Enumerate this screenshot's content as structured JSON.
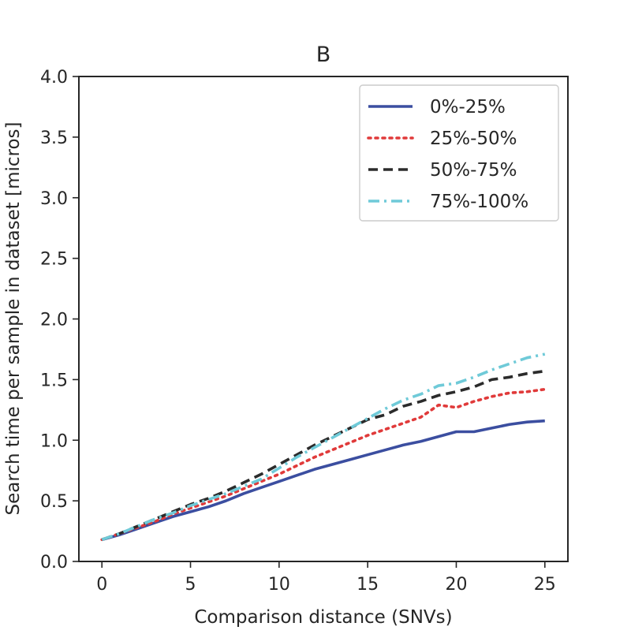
{
  "chart_data": {
    "type": "line",
    "title": "B",
    "xlabel": "Comparison distance (SNVs)",
    "ylabel": "Search time per sample in dataset [micros]",
    "xlim": [
      -1.3,
      26.3
    ],
    "ylim": [
      0.0,
      4.0
    ],
    "xticks": [
      0,
      5,
      10,
      15,
      20,
      25
    ],
    "yticks": [
      0.0,
      0.5,
      1.0,
      1.5,
      2.0,
      2.5,
      3.0,
      3.5,
      4.0
    ],
    "xtick_labels": [
      "0",
      "5",
      "10",
      "15",
      "20",
      "25"
    ],
    "ytick_labels": [
      "0.0",
      "0.5",
      "1.0",
      "1.5",
      "2.0",
      "2.5",
      "3.0",
      "3.5",
      "4.0"
    ],
    "grid": false,
    "legend_position": "top-right",
    "x": [
      0,
      1,
      2,
      3,
      4,
      5,
      6,
      7,
      8,
      9,
      10,
      11,
      12,
      13,
      14,
      15,
      16,
      17,
      18,
      19,
      20,
      21,
      22,
      23,
      24,
      25
    ],
    "series": [
      {
        "name": "0%-25%",
        "color": "#3b4ea0",
        "dash": "solid",
        "values": [
          0.18,
          0.22,
          0.27,
          0.32,
          0.37,
          0.41,
          0.45,
          0.5,
          0.56,
          0.61,
          0.66,
          0.71,
          0.76,
          0.8,
          0.84,
          0.88,
          0.92,
          0.96,
          0.99,
          1.03,
          1.07,
          1.07,
          1.1,
          1.13,
          1.15,
          1.16
        ]
      },
      {
        "name": "25%-50%",
        "color": "#e03a3a",
        "dash": "dotted",
        "values": [
          0.18,
          0.23,
          0.28,
          0.33,
          0.39,
          0.44,
          0.49,
          0.54,
          0.6,
          0.66,
          0.72,
          0.79,
          0.86,
          0.92,
          0.98,
          1.04,
          1.09,
          1.14,
          1.19,
          1.29,
          1.27,
          1.32,
          1.36,
          1.39,
          1.4,
          1.42
        ]
      },
      {
        "name": "50%-75%",
        "color": "#2b2b2b",
        "dash": "dashed",
        "values": [
          0.18,
          0.23,
          0.29,
          0.35,
          0.41,
          0.47,
          0.52,
          0.58,
          0.65,
          0.72,
          0.8,
          0.88,
          0.96,
          1.03,
          1.1,
          1.17,
          1.21,
          1.28,
          1.32,
          1.37,
          1.4,
          1.44,
          1.5,
          1.52,
          1.55,
          1.57
        ]
      },
      {
        "name": "75%-100%",
        "color": "#6fcad8",
        "dash": "dashdot",
        "values": [
          0.18,
          0.23,
          0.29,
          0.35,
          0.4,
          0.46,
          0.51,
          0.56,
          0.62,
          0.68,
          0.77,
          0.86,
          0.94,
          1.02,
          1.1,
          1.18,
          1.26,
          1.33,
          1.38,
          1.45,
          1.47,
          1.52,
          1.58,
          1.63,
          1.68,
          1.71
        ]
      }
    ]
  }
}
